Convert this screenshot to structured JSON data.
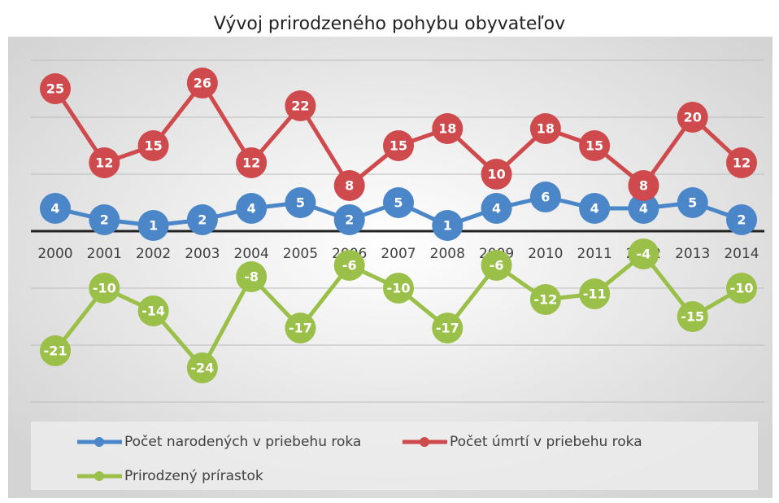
{
  "chart_data": {
    "type": "line",
    "title": "Vývoj prirodzeného pohybu obyvateľov",
    "categories": [
      "2000",
      "2001",
      "2002",
      "2003",
      "2004",
      "2005",
      "2006",
      "2007",
      "2008",
      "2009",
      "2010",
      "2011",
      "2012",
      "2013",
      "2014"
    ],
    "series": [
      {
        "name": "Počet narodených v priebehu roka",
        "color": "#4a86c8",
        "values": [
          4,
          2,
          1,
          2,
          4,
          5,
          2,
          5,
          1,
          4,
          6,
          4,
          4,
          5,
          2
        ]
      },
      {
        "name": "Počet úmrtí v priebehu roka",
        "color": "#cf4a4d",
        "values": [
          25,
          12,
          15,
          26,
          12,
          22,
          8,
          15,
          18,
          10,
          18,
          15,
          8,
          20,
          12
        ]
      },
      {
        "name": "Prirodzený prírastok",
        "color": "#9bc04a",
        "values": [
          -21,
          -10,
          -14,
          -24,
          -8,
          -17,
          -6,
          -10,
          -17,
          -6,
          -12,
          -11,
          -4,
          -15,
          -10
        ]
      }
    ],
    "ylim": [
      -30,
      30
    ],
    "yticks": [
      -30,
      -20,
      -10,
      0,
      10,
      20,
      30
    ],
    "grid": true
  }
}
